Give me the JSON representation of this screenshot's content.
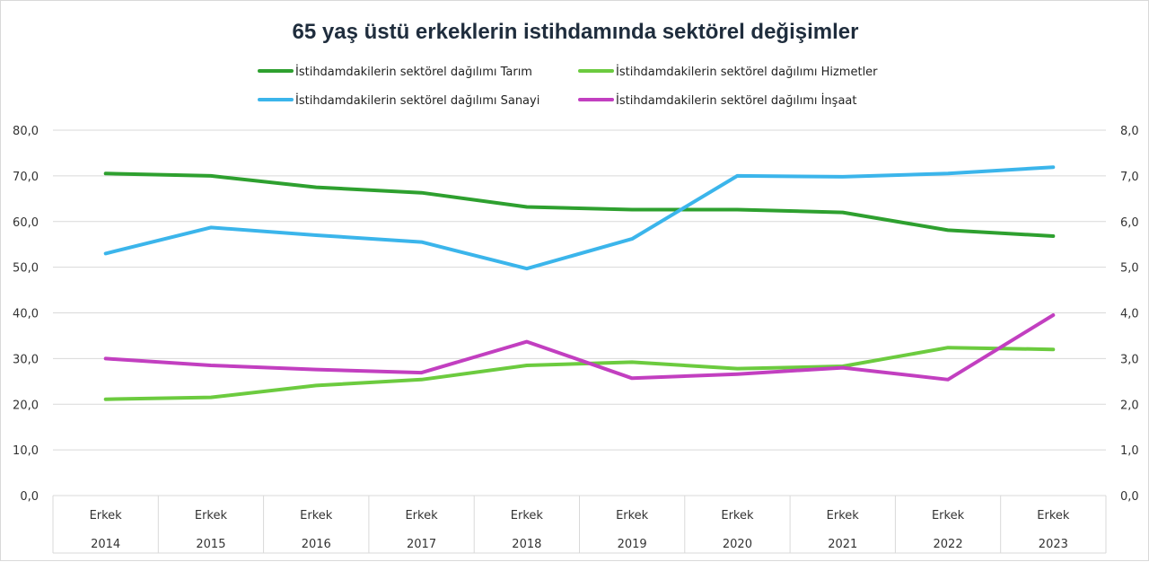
{
  "chart_data": {
    "type": "line",
    "title": "65 yaş üstü erkeklerin istihdamında sektörel değişimler",
    "categories": [
      {
        "group": "Erkek",
        "year": "2014"
      },
      {
        "group": "Erkek",
        "year": "2015"
      },
      {
        "group": "Erkek",
        "year": "2016"
      },
      {
        "group": "Erkek",
        "year": "2017"
      },
      {
        "group": "Erkek",
        "year": "2018"
      },
      {
        "group": "Erkek",
        "year": "2019"
      },
      {
        "group": "Erkek",
        "year": "2020"
      },
      {
        "group": "Erkek",
        "year": "2021"
      },
      {
        "group": "Erkek",
        "year": "2022"
      },
      {
        "group": "Erkek",
        "year": "2023"
      }
    ],
    "y_left": {
      "min": 0,
      "max": 80,
      "step": 10,
      "ticks": [
        "0,0",
        "10,0",
        "20,0",
        "30,0",
        "40,0",
        "50,0",
        "60,0",
        "70,0",
        "80,0"
      ]
    },
    "y_right": {
      "min": 0,
      "max": 8,
      "step": 1,
      "ticks": [
        "0,0",
        "1,0",
        "2,0",
        "3,0",
        "4,0",
        "5,0",
        "6,0",
        "7,0",
        "8,0"
      ]
    },
    "grid": true,
    "legend_position": "top",
    "series": [
      {
        "name": "İstihdamdakilerin sektörel dağılımı  Tarım",
        "color": "#2ea02f",
        "axis": "left",
        "values": [
          70.5,
          70.0,
          67.5,
          66.3,
          63.2,
          62.6,
          62.6,
          62.0,
          58.1,
          56.8
        ]
      },
      {
        "name": "İstihdamdakilerin sektörel dağılımı  Hizmetler",
        "color": "#6ccb3f",
        "axis": "left",
        "values": [
          21.1,
          21.5,
          24.1,
          25.4,
          28.5,
          29.2,
          27.8,
          28.3,
          32.4,
          32.0
        ]
      },
      {
        "name": "İstihdamdakilerin sektörel dağılımı  Sanayi",
        "color": "#3bb5eb",
        "axis": "left",
        "values": [
          53.0,
          58.7,
          57.0,
          55.5,
          49.7,
          56.2,
          70.0,
          69.8,
          70.5,
          71.9
        ]
      },
      {
        "name": "İstihdamdakilerin sektörel dağılımı  İnşaat",
        "color": "#c23fc0",
        "axis": "right",
        "values": [
          3.0,
          2.85,
          2.76,
          2.69,
          3.37,
          2.57,
          2.66,
          2.8,
          2.54,
          3.95
        ]
      }
    ]
  }
}
